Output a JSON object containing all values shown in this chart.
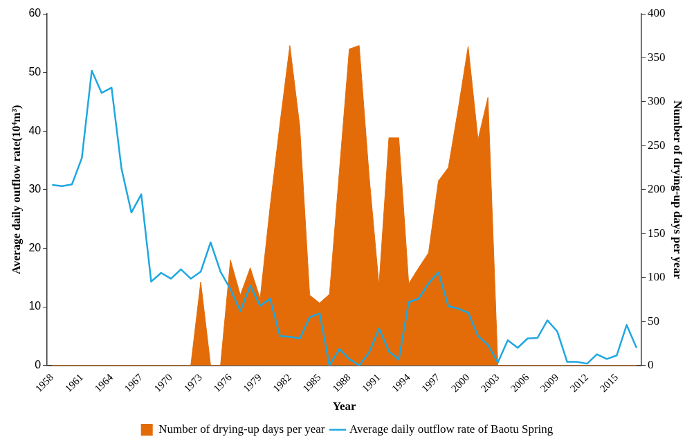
{
  "chart_data": {
    "type": "line",
    "xlabel": "Year",
    "ylabel": "Average daily outflow rate(10⁴m³)",
    "y2label": "Number of drying-up days per year",
    "categories": [
      "1958",
      null,
      null,
      "1961",
      null,
      null,
      "1964",
      null,
      null,
      "1967",
      null,
      null,
      "1970",
      null,
      null,
      "1973",
      null,
      null,
      "1976",
      null,
      null,
      "1979",
      null,
      null,
      "1982",
      null,
      null,
      "1985",
      null,
      null,
      "1988",
      null,
      null,
      "1991",
      null,
      null,
      "1994",
      null,
      null,
      "1997",
      null,
      null,
      "2000",
      null,
      null,
      "2003",
      null,
      null,
      "2006",
      null,
      null,
      "2009",
      null,
      null,
      "2012",
      null,
      null,
      "2015",
      null,
      null
    ],
    "series": [
      {
        "name": "Number of drying-up days per year",
        "type": "area",
        "axis": "y2",
        "color": "#e36c09",
        "values": [
          0,
          0,
          0,
          0,
          0,
          0,
          0,
          0,
          0,
          0,
          0,
          0,
          0,
          0,
          0,
          95,
          0,
          0,
          120,
          80,
          111,
          76,
          180,
          275,
          364,
          272,
          80,
          71,
          81,
          221,
          360,
          364,
          216,
          91,
          259,
          259,
          93,
          111,
          128,
          210,
          225,
          292,
          363,
          257,
          305,
          0,
          0,
          0,
          0,
          0,
          0,
          0,
          0,
          0,
          0,
          0,
          0,
          0,
          0,
          0
        ]
      },
      {
        "name": "Average daily outflow rate of Baotu Spring",
        "color": "#1ea7e1",
        "values": [
          30.8,
          30.6,
          30.9,
          35.4,
          50.3,
          46.5,
          47.4,
          33.6,
          26.1,
          29.2,
          14.3,
          15.8,
          14.8,
          16.4,
          14.8,
          16.0,
          21.0,
          16.0,
          13.0,
          9.3,
          13.6,
          10.2,
          11.4,
          5.0,
          4.9,
          4.6,
          8.2,
          8.9,
          0,
          2.8,
          1.1,
          0,
          2.2,
          6.3,
          2.4,
          1.0,
          10.8,
          11.4,
          14.0,
          15.9,
          10.1,
          9.7,
          9.0,
          5.0,
          3.5,
          0.5,
          4.3,
          3.0,
          4.6,
          4.7,
          7.7,
          5.8,
          0.6,
          0.6,
          0.3,
          1.9,
          1.1,
          1.7,
          6.9,
          3.0
        ]
      }
    ],
    "ylim": [
      0,
      60
    ],
    "yticks": [
      0,
      10,
      20,
      30,
      40,
      50,
      60
    ],
    "y2lim": [
      0,
      400
    ],
    "y2ticks": [
      0,
      50,
      100,
      150,
      200,
      250,
      300,
      350,
      400
    ],
    "grid": false,
    "legend": "bottom",
    "marker": "none",
    "line_style": "solid"
  }
}
